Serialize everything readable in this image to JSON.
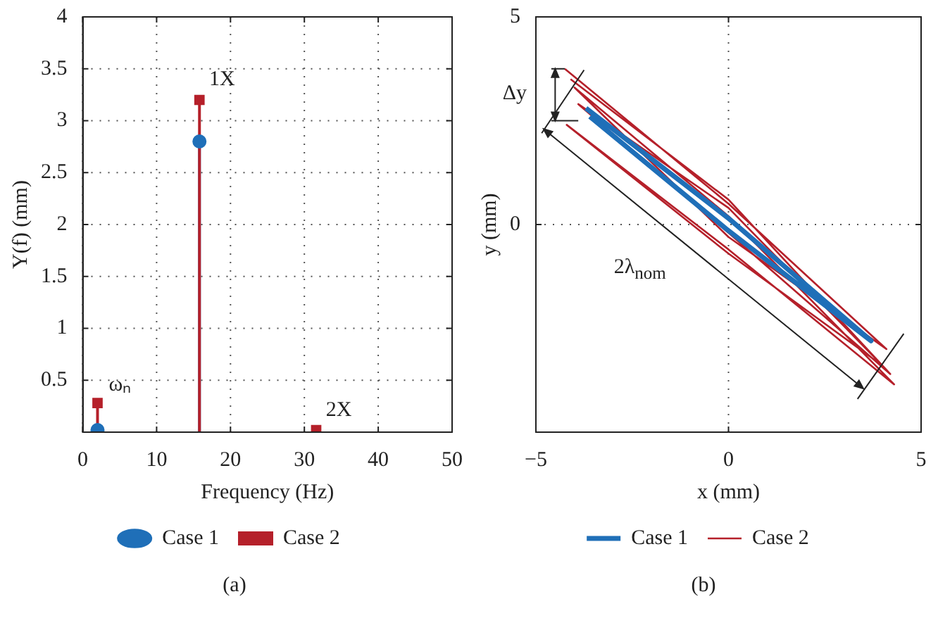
{
  "chart_data": [
    {
      "type": "lollipop",
      "title": "(a)",
      "xlabel": "Frequency (Hz)",
      "ylabel": "Y(f) (mm)",
      "x": [
        2,
        15.8,
        31.6
      ],
      "series": [
        {
          "name": "Case 1",
          "color": "#1f6fb8",
          "marker": "circle",
          "values": [
            0.02,
            2.8,
            null
          ]
        },
        {
          "name": "Case 2",
          "color": "#b5202a",
          "marker": "square",
          "values": [
            0.28,
            3.2,
            0.02
          ]
        }
      ],
      "xlim": [
        0,
        50
      ],
      "xticks": [
        0,
        10,
        20,
        30,
        40,
        50
      ],
      "ylim": [
        0,
        4
      ],
      "yticks": [
        0.5,
        1,
        1.5,
        2,
        2.5,
        3,
        3.5,
        4
      ],
      "annotations": [
        {
          "text": "ωₙ",
          "x": 2,
          "y": 0.28
        },
        {
          "text": "1X",
          "x": 15.8,
          "y": 3.2
        },
        {
          "text": "2X",
          "x": 31.6,
          "y": 0.02
        }
      ],
      "grid": true,
      "legend": "bottom"
    },
    {
      "type": "line",
      "title": "(b)",
      "xlabel": "x (mm)",
      "ylabel": "y (mm)",
      "series": [
        {
          "name": "Case 1",
          "color": "#1f6fb8",
          "x": [
            -3.7,
            0,
            3.7,
            0,
            -3.6
          ],
          "values": [
            2.8,
            0.15,
            -2.8,
            -0.15,
            2.6
          ]
        },
        {
          "name": "Case 2",
          "color": "#b5202a",
          "x": [
            -4.25,
            0,
            4.1,
            0,
            -4.0,
            0,
            4.3,
            0,
            -4.2,
            0,
            4.0,
            0,
            -3.9,
            0,
            4.2,
            0,
            -4.1
          ],
          "values": [
            3.75,
            0.5,
            -3.0,
            -0.3,
            3.3,
            0.2,
            -3.85,
            -0.6,
            2.4,
            -0.7,
            -3.4,
            0.4,
            2.9,
            -0.2,
            -3.6,
            0.6,
            3.5
          ]
        }
      ],
      "xlim": [
        -5,
        5
      ],
      "xticks": [
        {
          "value": -5,
          "label": "−5"
        },
        0,
        5
      ],
      "ylim": [
        -5,
        5
      ],
      "yticks": [
        0,
        5
      ],
      "annotations": [
        "Δy",
        "2λ$_{nom}$"
      ],
      "grid": true,
      "legend": "bottom"
    }
  ]
}
